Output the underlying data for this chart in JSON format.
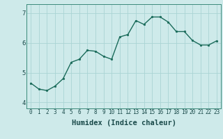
{
  "x": [
    0,
    1,
    2,
    3,
    4,
    5,
    6,
    7,
    8,
    9,
    10,
    11,
    12,
    13,
    14,
    15,
    16,
    17,
    18,
    19,
    20,
    21,
    22,
    23
  ],
  "y": [
    4.65,
    4.45,
    4.4,
    4.55,
    4.8,
    5.35,
    5.45,
    5.75,
    5.72,
    5.55,
    5.45,
    6.2,
    6.28,
    6.75,
    6.62,
    6.87,
    6.87,
    6.7,
    6.38,
    6.38,
    6.08,
    5.93,
    5.93,
    6.07
  ],
  "line_color": "#1a6b5a",
  "marker": "o",
  "marker_size": 1.8,
  "bg_color": "#ceeaea",
  "grid_color": "#aad4d4",
  "xlabel": "Humidex (Indice chaleur)",
  "xlabel_fontsize": 7.5,
  "ylim": [
    3.8,
    7.3
  ],
  "xlim": [
    -0.5,
    23.5
  ],
  "yticks": [
    4,
    5,
    6,
    7
  ],
  "xticks": [
    0,
    1,
    2,
    3,
    4,
    5,
    6,
    7,
    8,
    9,
    10,
    11,
    12,
    13,
    14,
    15,
    16,
    17,
    18,
    19,
    20,
    21,
    22,
    23
  ],
  "line_width": 1.0,
  "tick_fontsize": 5.5,
  "ytick_fontsize": 6.5
}
